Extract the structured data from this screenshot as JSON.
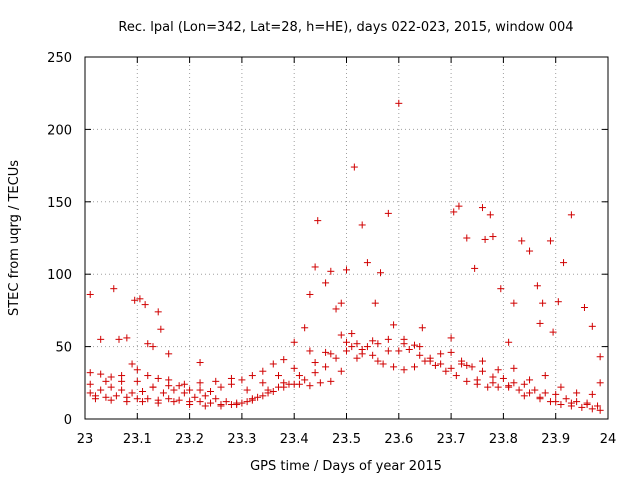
{
  "chart_data": {
    "type": "scatter",
    "title": "Rec. lpal (Lon=342, Lat=28, h=HE), days 022-023, 2015, window 004",
    "xlabel": "GPS time / Days of year 2015",
    "ylabel": "STEC from uqrg / TECUs",
    "xlim": [
      23,
      24
    ],
    "ylim": [
      0,
      250
    ],
    "xticks": [
      23,
      23.1,
      23.2,
      23.3,
      23.4,
      23.5,
      23.6,
      23.7,
      23.8,
      23.9,
      24
    ],
    "xtick_labels": [
      "23",
      "23.1",
      "23.2",
      "23.3",
      "23.4",
      "23.5",
      "23.6",
      "23.7",
      "23.8",
      "23.9",
      "24"
    ],
    "yticks": [
      0,
      50,
      100,
      150,
      200,
      250
    ],
    "ytick_labels": [
      "0",
      "50",
      "100",
      "150",
      "200",
      "250"
    ],
    "grid": true,
    "marker": "+",
    "color": "#d00000",
    "series": [
      {
        "points": [
          [
            23.01,
            86
          ],
          [
            23.03,
            55
          ],
          [
            23.055,
            90
          ],
          [
            23.065,
            55
          ],
          [
            23.08,
            56
          ],
          [
            23.095,
            82
          ],
          [
            23.105,
            83
          ],
          [
            23.115,
            79
          ],
          [
            23.12,
            52
          ],
          [
            23.13,
            50
          ],
          [
            23.14,
            74
          ],
          [
            23.145,
            62
          ],
          [
            23.16,
            45
          ],
          [
            23.22,
            39
          ],
          [
            23.01,
            32
          ],
          [
            23.03,
            31
          ],
          [
            23.05,
            29
          ],
          [
            23.07,
            26
          ],
          [
            23.09,
            38
          ],
          [
            23.1,
            34
          ],
          [
            23.12,
            30
          ],
          [
            23.14,
            28
          ],
          [
            23.16,
            27
          ],
          [
            23.18,
            23
          ],
          [
            23.2,
            20
          ],
          [
            23.22,
            20
          ],
          [
            23.24,
            19
          ],
          [
            23.26,
            22
          ],
          [
            23.28,
            24
          ],
          [
            23.3,
            27
          ],
          [
            23.32,
            30
          ],
          [
            23.34,
            33
          ],
          [
            23.36,
            38
          ],
          [
            23.38,
            41
          ],
          [
            23.4,
            53
          ],
          [
            23.42,
            63
          ],
          [
            23.43,
            86
          ],
          [
            23.44,
            105
          ],
          [
            23.445,
            137
          ],
          [
            23.46,
            94
          ],
          [
            23.47,
            102
          ],
          [
            23.48,
            76
          ],
          [
            23.49,
            80
          ],
          [
            23.5,
            103
          ],
          [
            23.51,
            59
          ],
          [
            23.515,
            174
          ],
          [
            23.53,
            134
          ],
          [
            23.54,
            108
          ],
          [
            23.555,
            80
          ],
          [
            23.565,
            101
          ],
          [
            23.58,
            142
          ],
          [
            23.59,
            65
          ],
          [
            23.6,
            218
          ],
          [
            23.61,
            55
          ],
          [
            23.63,
            51
          ],
          [
            23.645,
            63
          ],
          [
            23.66,
            42
          ],
          [
            23.68,
            45
          ],
          [
            23.7,
            56
          ],
          [
            23.705,
            143
          ],
          [
            23.715,
            147
          ],
          [
            23.73,
            125
          ],
          [
            23.745,
            104
          ],
          [
            23.76,
            146
          ],
          [
            23.765,
            124
          ],
          [
            23.775,
            141
          ],
          [
            23.78,
            126
          ],
          [
            23.795,
            90
          ],
          [
            23.81,
            53
          ],
          [
            23.82,
            80
          ],
          [
            23.835,
            123
          ],
          [
            23.85,
            116
          ],
          [
            23.865,
            92
          ],
          [
            23.87,
            66
          ],
          [
            23.875,
            80
          ],
          [
            23.89,
            123
          ],
          [
            23.895,
            60
          ],
          [
            23.905,
            81
          ],
          [
            23.915,
            108
          ],
          [
            23.93,
            141
          ],
          [
            23.955,
            77
          ],
          [
            23.97,
            64
          ],
          [
            23.985,
            43
          ],
          [
            23.01,
            18
          ],
          [
            23.03,
            20
          ],
          [
            23.05,
            22
          ],
          [
            23.07,
            20
          ],
          [
            23.09,
            18
          ],
          [
            23.11,
            19
          ],
          [
            23.13,
            22
          ],
          [
            23.15,
            18
          ],
          [
            23.17,
            20
          ],
          [
            23.19,
            18
          ],
          [
            23.21,
            15
          ],
          [
            23.23,
            16
          ],
          [
            23.25,
            14
          ],
          [
            23.27,
            12
          ],
          [
            23.29,
            11
          ],
          [
            23.31,
            12
          ],
          [
            23.33,
            15
          ],
          [
            23.35,
            18
          ],
          [
            23.37,
            22
          ],
          [
            23.39,
            24
          ],
          [
            23.41,
            24
          ],
          [
            23.43,
            23
          ],
          [
            23.45,
            25
          ],
          [
            23.47,
            26
          ],
          [
            23.49,
            33
          ],
          [
            23.51,
            50
          ],
          [
            23.53,
            48
          ],
          [
            23.55,
            44
          ],
          [
            23.57,
            38
          ],
          [
            23.59,
            36
          ],
          [
            23.61,
            34
          ],
          [
            23.63,
            36
          ],
          [
            23.65,
            40
          ],
          [
            23.67,
            37
          ],
          [
            23.69,
            33
          ],
          [
            23.71,
            30
          ],
          [
            23.73,
            26
          ],
          [
            23.75,
            24
          ],
          [
            23.77,
            22
          ],
          [
            23.79,
            22
          ],
          [
            23.81,
            22
          ],
          [
            23.83,
            20
          ],
          [
            23.85,
            18
          ],
          [
            23.87,
            15
          ],
          [
            23.89,
            12
          ],
          [
            23.91,
            10
          ],
          [
            23.93,
            9
          ],
          [
            23.95,
            8
          ],
          [
            23.97,
            7
          ],
          [
            23.985,
            6
          ],
          [
            23.02,
            16
          ],
          [
            23.04,
            15
          ],
          [
            23.06,
            16
          ],
          [
            23.08,
            15
          ],
          [
            23.1,
            14
          ],
          [
            23.12,
            14
          ],
          [
            23.14,
            13
          ],
          [
            23.16,
            14
          ],
          [
            23.18,
            13
          ],
          [
            23.2,
            12
          ],
          [
            23.22,
            12
          ],
          [
            23.24,
            11
          ],
          [
            23.26,
            10
          ],
          [
            23.28,
            10
          ],
          [
            23.3,
            11
          ],
          [
            23.32,
            13
          ],
          [
            23.34,
            16
          ],
          [
            23.36,
            19
          ],
          [
            23.38,
            22
          ],
          [
            23.4,
            24
          ],
          [
            23.42,
            27
          ],
          [
            23.44,
            32
          ],
          [
            23.46,
            36
          ],
          [
            23.48,
            42
          ],
          [
            23.5,
            47
          ],
          [
            23.52,
            52
          ],
          [
            23.54,
            50
          ],
          [
            23.56,
            52
          ],
          [
            23.58,
            47
          ],
          [
            23.6,
            47
          ],
          [
            23.62,
            48
          ],
          [
            23.64,
            44
          ],
          [
            23.66,
            40
          ],
          [
            23.68,
            38
          ],
          [
            23.7,
            46
          ],
          [
            23.72,
            40
          ],
          [
            23.74,
            36
          ],
          [
            23.76,
            33
          ],
          [
            23.78,
            29
          ],
          [
            23.8,
            28
          ],
          [
            23.82,
            25
          ],
          [
            23.84,
            24
          ],
          [
            23.86,
            20
          ],
          [
            23.88,
            18
          ],
          [
            23.9,
            17
          ],
          [
            23.92,
            14
          ],
          [
            23.94,
            12
          ],
          [
            23.96,
            11
          ],
          [
            23.98,
            9
          ],
          [
            23.01,
            24
          ],
          [
            23.04,
            26
          ],
          [
            23.07,
            30
          ],
          [
            23.1,
            26
          ],
          [
            23.13,
            22
          ],
          [
            23.16,
            23
          ],
          [
            23.19,
            24
          ],
          [
            23.22,
            25
          ],
          [
            23.25,
            26
          ],
          [
            23.28,
            28
          ],
          [
            23.31,
            20
          ],
          [
            23.34,
            25
          ],
          [
            23.37,
            30
          ],
          [
            23.4,
            35
          ],
          [
            23.43,
            47
          ],
          [
            23.46,
            46
          ],
          [
            23.49,
            58
          ],
          [
            23.52,
            42
          ],
          [
            23.55,
            54
          ],
          [
            23.58,
            55
          ],
          [
            23.61,
            52
          ],
          [
            23.64,
            50
          ],
          [
            23.7,
            35
          ],
          [
            23.73,
            37
          ],
          [
            23.76,
            40
          ],
          [
            23.79,
            34
          ],
          [
            23.82,
            35
          ],
          [
            23.85,
            27
          ],
          [
            23.88,
            30
          ],
          [
            23.91,
            22
          ],
          [
            23.94,
            18
          ],
          [
            23.97,
            17
          ],
          [
            23.985,
            25
          ],
          [
            23.02,
            14
          ],
          [
            23.05,
            13
          ],
          [
            23.08,
            12
          ],
          [
            23.11,
            12
          ],
          [
            23.14,
            11
          ],
          [
            23.17,
            12
          ],
          [
            23.2,
            10
          ],
          [
            23.23,
            9
          ],
          [
            23.26,
            9
          ],
          [
            23.29,
            10
          ],
          [
            23.32,
            14
          ],
          [
            23.35,
            20
          ],
          [
            23.38,
            25
          ],
          [
            23.41,
            30
          ],
          [
            23.44,
            39
          ],
          [
            23.47,
            45
          ],
          [
            23.5,
            53
          ],
          [
            23.53,
            45
          ],
          [
            23.56,
            40
          ],
          [
            23.72,
            38
          ],
          [
            23.75,
            27
          ],
          [
            23.78,
            25
          ],
          [
            23.81,
            23
          ],
          [
            23.84,
            16
          ],
          [
            23.87,
            14
          ],
          [
            23.9,
            12
          ],
          [
            23.93,
            11
          ],
          [
            23.96,
            10
          ]
        ]
      }
    ]
  }
}
